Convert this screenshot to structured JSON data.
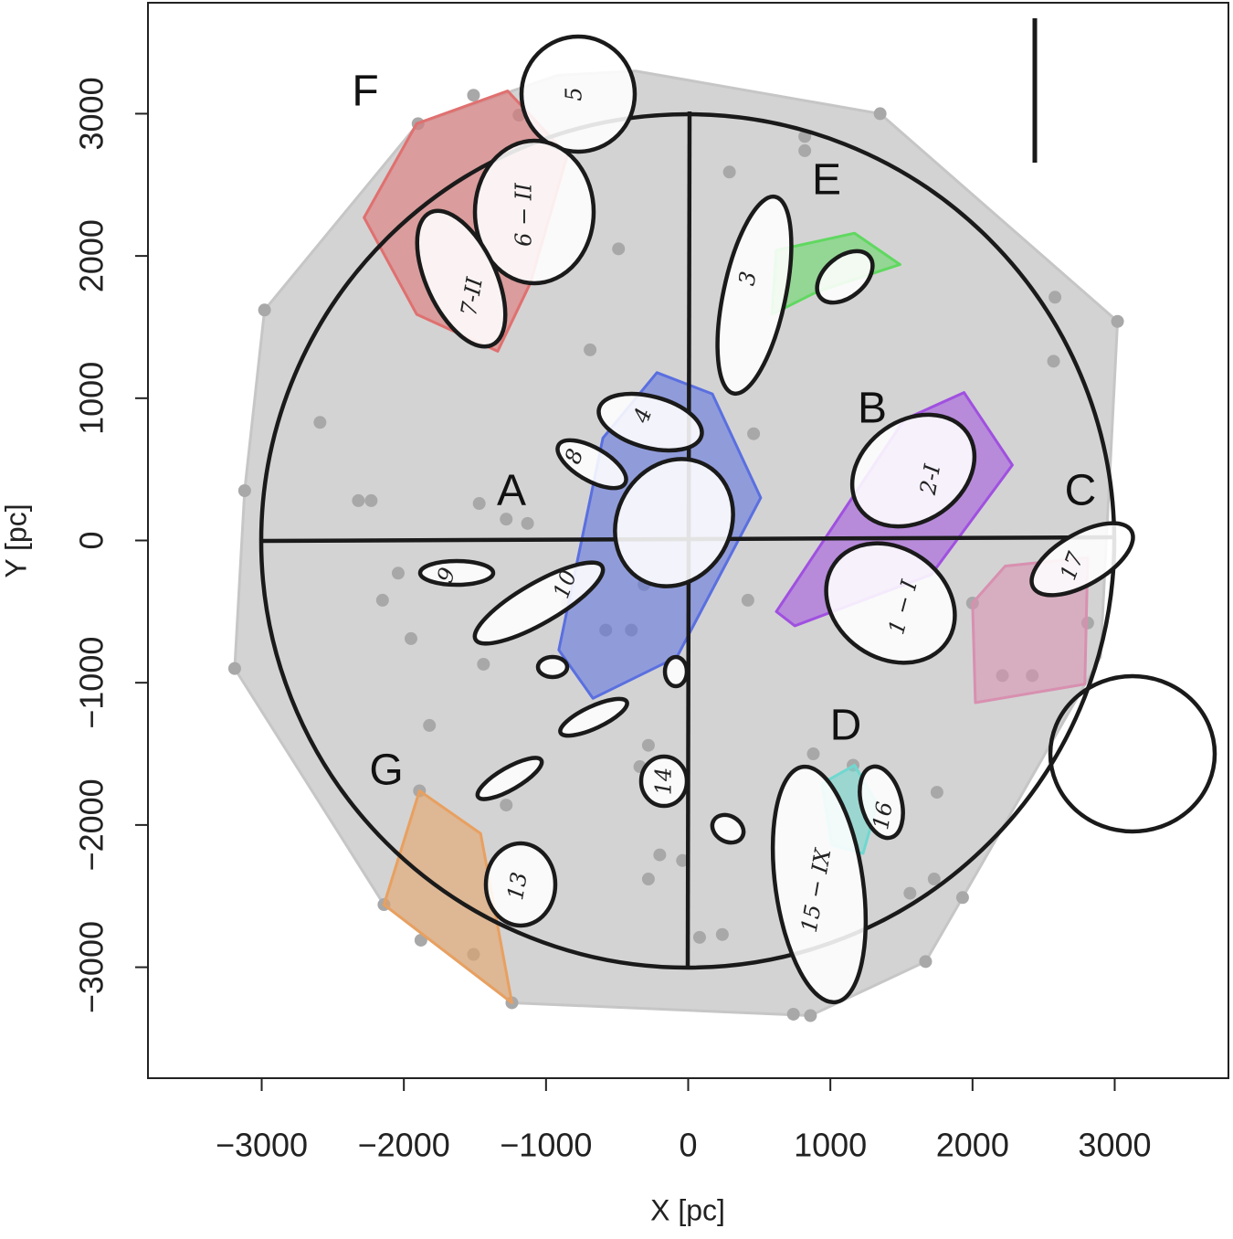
{
  "chart_data": {
    "type": "scatter",
    "x_label": "X [pc]",
    "y_label": "Y [pc]",
    "xlim": [
      -3800,
      3800
    ],
    "ylim": [
      -3780,
      3780
    ],
    "xticks": [
      {
        "value": -3000,
        "label": "−3000"
      },
      {
        "value": -2000,
        "label": "−2000"
      },
      {
        "value": -1000,
        "label": "−1000"
      },
      0,
      1000,
      2000,
      3000
    ],
    "yticks": [
      {
        "value": -3000,
        "label": "−3000"
      },
      {
        "value": -2000,
        "label": "−2000"
      },
      {
        "value": -1000,
        "label": "−1000"
      },
      0,
      1000,
      2000,
      3000
    ],
    "points": {
      "color": "#a8a8a8",
      "x": [
        -1510,
        -1190,
        -1900,
        820,
        820,
        290,
        1350,
        3020,
        2580,
        -490,
        -690,
        -2590,
        -2980,
        -3120,
        -3190,
        -2320,
        -2230,
        -1470,
        -1280,
        -1130,
        -2040,
        -2150,
        -1950,
        -1440,
        -1820,
        -850,
        -400,
        -310,
        -580,
        460,
        420,
        2570,
        2000,
        2420,
        2810,
        2210,
        -280,
        -340,
        1750,
        880,
        -280,
        -200,
        -40,
        80,
        240,
        740,
        1670,
        1930,
        1730,
        1560,
        -1280,
        -1510,
        -1880,
        -2140,
        -1890,
        1160,
        -1240,
        860
      ],
      "y": [
        3130,
        2990,
        2930,
        2840,
        2740,
        2590,
        3000,
        1540,
        1710,
        2050,
        1340,
        830,
        1620,
        350,
        -900,
        280,
        280,
        260,
        150,
        120,
        -230,
        -420,
        -690,
        -870,
        -1300,
        -440,
        -630,
        -310,
        -630,
        750,
        -420,
        1260,
        -440,
        -950,
        -580,
        -950,
        -1440,
        -1590,
        -1770,
        -1500,
        -2380,
        -2210,
        -2250,
        -2790,
        -2770,
        -3330,
        -2960,
        -2510,
        -2380,
        -2480,
        -1860,
        -2910,
        -2810,
        -2560,
        -1760,
        -1580,
        -3250,
        -3340
      ]
    },
    "hull": {
      "color": "#d3d3d3",
      "x": [
        -2980,
        -1900,
        -920,
        -370,
        1350,
        3020,
        2900,
        1930,
        1670,
        860,
        -1240,
        -2140,
        -3190,
        -3120
      ],
      "y": [
        1620,
        2930,
        3270,
        3300,
        3000,
        1540,
        -820,
        -2510,
        -2960,
        -3340,
        -3250,
        -2560,
        -900,
        350
      ]
    },
    "groups": [
      {
        "name": "A",
        "color": "#5a6fe0",
        "x": [
          -220,
          170,
          510,
          -80,
          -670,
          -910,
          -600
        ],
        "y": [
          1180,
          1030,
          300,
          -820,
          -1110,
          -770,
          720
        ]
      },
      {
        "name": "B",
        "color": "#a050e0",
        "x": [
          1940,
          2280,
          1710,
          750,
          620,
          1520
        ],
        "y": [
          1040,
          530,
          -240,
          -600,
          -500,
          850
        ]
      },
      {
        "name": "C",
        "color": "#d890b0",
        "x": [
          2230,
          2810,
          2790,
          2020,
          2000
        ],
        "y": [
          -180,
          -120,
          -1010,
          -1140,
          -440
        ]
      },
      {
        "name": "D",
        "color": "#70d8d0",
        "x": [
          940,
          1170,
          1330,
          1230,
          1010
        ],
        "y": [
          -1710,
          -1580,
          -1850,
          -2200,
          -2140
        ]
      },
      {
        "name": "E",
        "color": "#60d860",
        "x": [
          620,
          1170,
          1490,
          910,
          590
        ],
        "y": [
          2040,
          2160,
          1940,
          1750,
          1590
        ]
      },
      {
        "name": "F",
        "color": "#e07070",
        "x": [
          -1910,
          -1270,
          -850,
          -1110,
          -1340,
          -1910,
          -2280
        ],
        "y": [
          2930,
          3160,
          2710,
          1810,
          1330,
          1590,
          2270
        ]
      },
      {
        "name": "G",
        "color": "#e8a060",
        "x": [
          -1890,
          -1460,
          -1240,
          -2140
        ],
        "y": [
          -1760,
          -2060,
          -3250,
          -2560
        ]
      }
    ],
    "annotations": [
      "5",
      "6 − II",
      "7-II",
      "3",
      "4",
      "8",
      "2-I",
      "1 − I",
      "17",
      "9",
      "10",
      "14",
      "16",
      "15 − IX",
      "13"
    ]
  }
}
